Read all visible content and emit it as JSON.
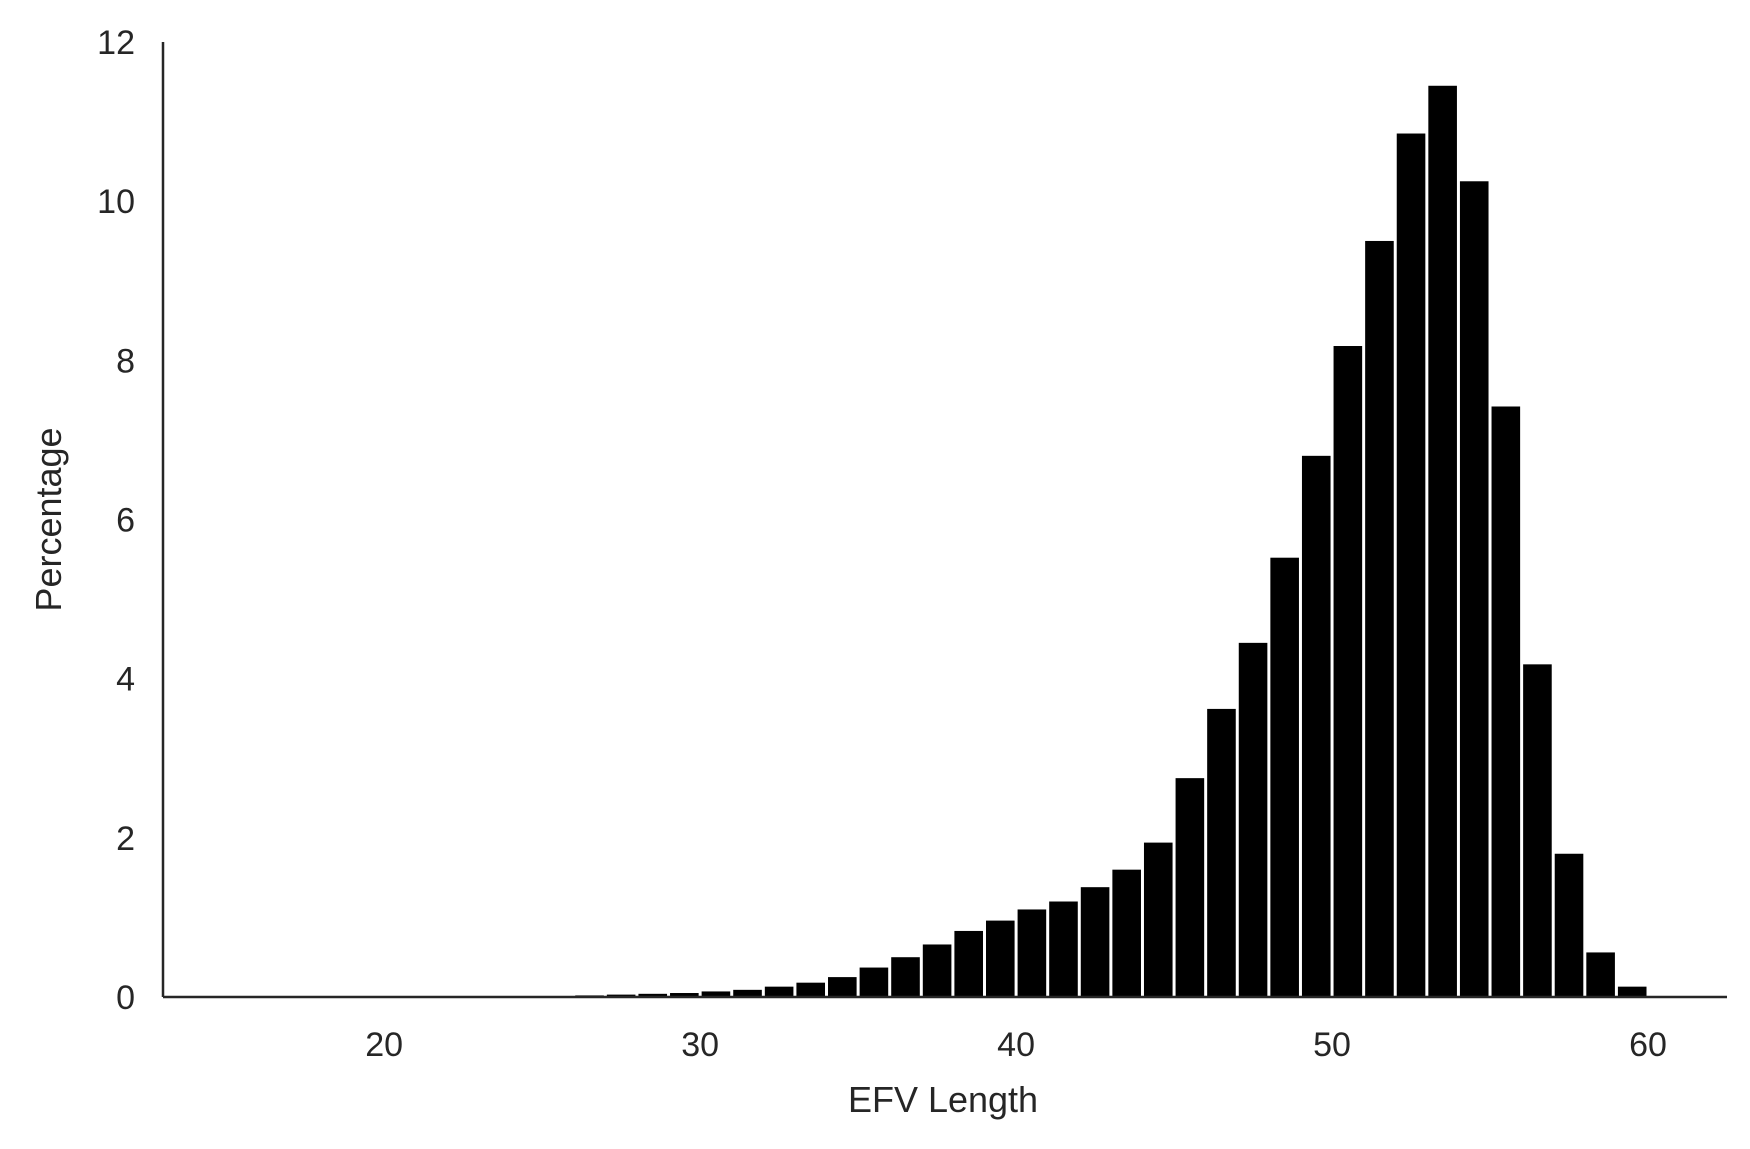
{
  "chart_data": {
    "type": "bar",
    "title": "",
    "xlabel": "EFV Length",
    "ylabel": "Percentage",
    "xlim": [
      13,
      62.5
    ],
    "ylim": [
      0,
      12
    ],
    "xticks": [
      20,
      30,
      40,
      50,
      60
    ],
    "yticks": [
      0,
      2,
      4,
      6,
      8,
      10,
      12
    ],
    "grid": false,
    "bar_color": "#000000",
    "bin_width": 1,
    "bins": [
      {
        "x": 25,
        "value": 0.01
      },
      {
        "x": 26,
        "value": 0.02
      },
      {
        "x": 27,
        "value": 0.03
      },
      {
        "x": 28,
        "value": 0.04
      },
      {
        "x": 29,
        "value": 0.05
      },
      {
        "x": 30,
        "value": 0.07
      },
      {
        "x": 31,
        "value": 0.09
      },
      {
        "x": 32,
        "value": 0.13
      },
      {
        "x": 33,
        "value": 0.18
      },
      {
        "x": 34,
        "value": 0.25
      },
      {
        "x": 35,
        "value": 0.37
      },
      {
        "x": 36,
        "value": 0.5
      },
      {
        "x": 37,
        "value": 0.66
      },
      {
        "x": 38,
        "value": 0.83
      },
      {
        "x": 39,
        "value": 0.96
      },
      {
        "x": 40,
        "value": 1.1
      },
      {
        "x": 41,
        "value": 1.2
      },
      {
        "x": 42,
        "value": 1.38
      },
      {
        "x": 43,
        "value": 1.6
      },
      {
        "x": 44,
        "value": 1.94
      },
      {
        "x": 45,
        "value": 2.75
      },
      {
        "x": 46,
        "value": 3.62
      },
      {
        "x": 47,
        "value": 4.45
      },
      {
        "x": 48,
        "value": 5.52
      },
      {
        "x": 49,
        "value": 6.8
      },
      {
        "x": 50,
        "value": 8.18
      },
      {
        "x": 51,
        "value": 9.5
      },
      {
        "x": 52,
        "value": 10.85
      },
      {
        "x": 53,
        "value": 11.45
      },
      {
        "x": 54,
        "value": 10.25
      },
      {
        "x": 55,
        "value": 7.42
      },
      {
        "x": 56,
        "value": 4.18
      },
      {
        "x": 57,
        "value": 1.8
      },
      {
        "x": 58,
        "value": 0.56
      },
      {
        "x": 59,
        "value": 0.13
      }
    ]
  }
}
